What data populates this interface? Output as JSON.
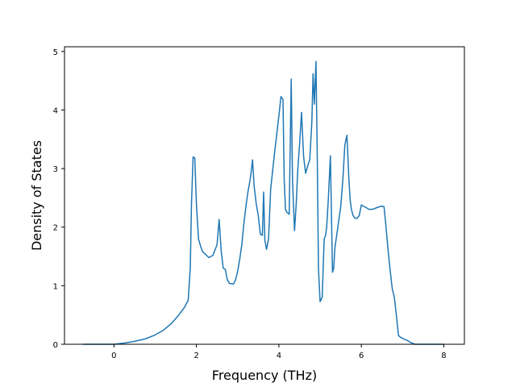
{
  "chart_data": {
    "type": "line",
    "title": "",
    "xlabel": "Frequency (THz)",
    "ylabel": "Density of States",
    "xlim": [
      -1.2,
      8.5
    ],
    "ylim": [
      0,
      5.08
    ],
    "grid": false,
    "x_ticks": [
      0,
      2,
      4,
      6,
      8
    ],
    "y_ticks": [
      0,
      1,
      2,
      3,
      4,
      5
    ],
    "series": [
      {
        "color": "#1f77b4",
        "x": [
          -0.75,
          -0.2,
          0.0,
          0.25,
          0.5,
          0.75,
          1.0,
          1.2,
          1.4,
          1.55,
          1.7,
          1.8,
          1.85,
          1.88,
          1.92,
          1.96,
          2.0,
          2.05,
          2.1,
          2.15,
          2.2,
          2.3,
          2.4,
          2.5,
          2.55,
          2.6,
          2.65,
          2.7,
          2.75,
          2.8,
          2.9,
          2.95,
          3.0,
          3.05,
          3.1,
          3.15,
          3.2,
          3.25,
          3.3,
          3.33,
          3.36,
          3.4,
          3.45,
          3.5,
          3.55,
          3.6,
          3.63,
          3.66,
          3.7,
          3.75,
          3.8,
          3.9,
          4.0,
          4.05,
          4.1,
          4.13,
          4.16,
          4.2,
          4.25,
          4.3,
          4.33,
          4.38,
          4.42,
          4.46,
          4.5,
          4.55,
          4.6,
          4.65,
          4.7,
          4.75,
          4.8,
          4.83,
          4.86,
          4.9,
          4.93,
          4.96,
          5.0,
          5.05,
          5.1,
          5.13,
          5.16,
          5.2,
          5.25,
          5.3,
          5.33,
          5.36,
          5.4,
          5.45,
          5.5,
          5.55,
          5.6,
          5.65,
          5.7,
          5.73,
          5.76,
          5.8,
          5.85,
          5.9,
          5.95,
          6.0,
          6.05,
          6.1,
          6.15,
          6.2,
          6.3,
          6.4,
          6.5,
          6.55,
          6.6,
          6.65,
          6.7,
          6.75,
          6.8,
          6.85,
          6.9,
          6.95,
          7.0,
          7.1,
          7.2,
          7.3,
          7.5,
          8.0
        ],
        "y": [
          0.0,
          0.0,
          0.0,
          0.02,
          0.05,
          0.09,
          0.16,
          0.24,
          0.36,
          0.48,
          0.62,
          0.75,
          1.3,
          2.4,
          3.2,
          3.18,
          2.4,
          1.8,
          1.68,
          1.58,
          1.55,
          1.48,
          1.52,
          1.7,
          2.13,
          1.6,
          1.3,
          1.28,
          1.1,
          1.04,
          1.03,
          1.1,
          1.25,
          1.45,
          1.7,
          2.05,
          2.35,
          2.6,
          2.8,
          2.95,
          3.15,
          2.7,
          2.4,
          2.2,
          1.88,
          1.86,
          2.6,
          1.78,
          1.62,
          1.8,
          2.65,
          3.3,
          3.9,
          4.23,
          4.18,
          2.8,
          2.3,
          2.25,
          2.22,
          4.53,
          2.8,
          1.94,
          2.4,
          3.0,
          3.4,
          3.96,
          3.2,
          2.92,
          3.05,
          3.15,
          3.8,
          4.62,
          4.1,
          4.83,
          3.2,
          1.3,
          0.73,
          0.8,
          1.8,
          1.85,
          2.0,
          2.5,
          3.22,
          1.23,
          1.3,
          1.65,
          1.85,
          2.1,
          2.35,
          2.8,
          3.4,
          3.57,
          2.8,
          2.45,
          2.3,
          2.2,
          2.15,
          2.15,
          2.2,
          2.38,
          2.36,
          2.34,
          2.32,
          2.3,
          2.31,
          2.34,
          2.36,
          2.35,
          2.0,
          1.6,
          1.25,
          0.95,
          0.8,
          0.5,
          0.15,
          0.12,
          0.1,
          0.07,
          0.03,
          0.0,
          0.0,
          0.0
        ]
      }
    ]
  }
}
